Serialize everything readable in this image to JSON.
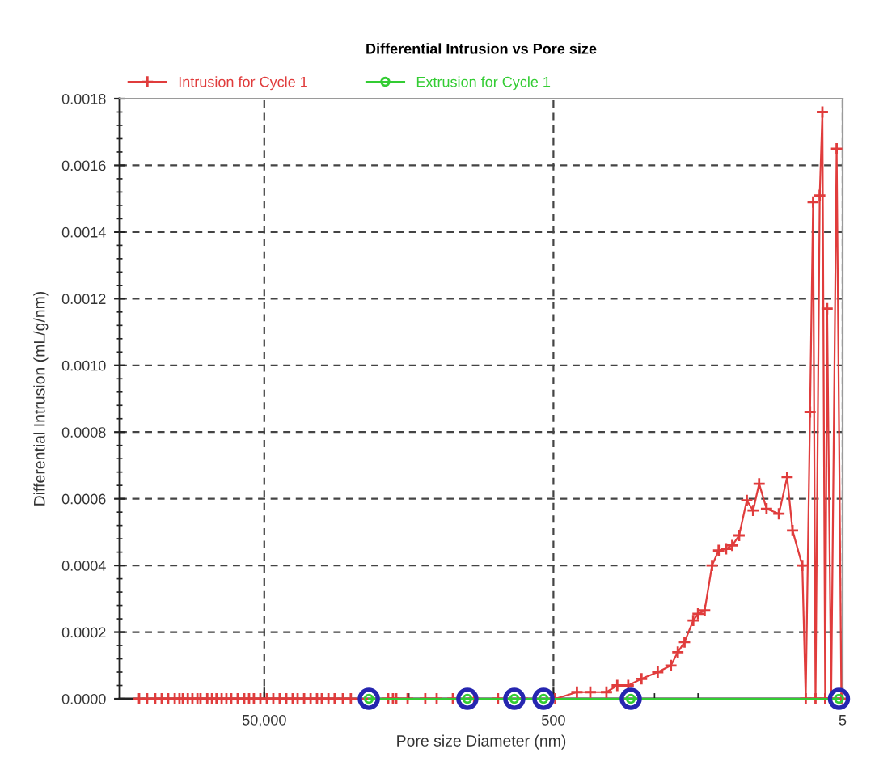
{
  "chart_data": {
    "type": "line",
    "title": "Differential Intrusion vs Pore size",
    "xlabel": "Pore size Diameter (nm)",
    "ylabel": "Differential Intrusion (mL/g/nm)",
    "log": "x",
    "xlim": [
      500000,
      5
    ],
    "xticks": [
      {
        "value": 50000,
        "label": "50,000"
      },
      {
        "value": 5000,
        "label": null
      },
      500,
      {
        "value": 100,
        "label": null
      },
      {
        "value": 50,
        "label": null
      },
      5
    ],
    "ylim": [
      0,
      0.0018
    ],
    "yticks": [
      {
        "value": 0,
        "label": "0.0000"
      },
      0.0002,
      0.0004,
      0.0006,
      0.0008,
      {
        "value": 0.001,
        "label": "0.0010"
      },
      0.0012,
      0.0014,
      0.0016,
      0.0018,
      {
        "value": 4e-05,
        "label": null
      },
      {
        "value": 8e-05,
        "label": null
      },
      {
        "value": 0.00012,
        "label": null
      },
      {
        "value": 0.00016,
        "label": null
      },
      {
        "value": 0.00024,
        "label": null
      },
      {
        "value": 0.00028,
        "label": null
      },
      {
        "value": 0.00032,
        "label": null
      },
      {
        "value": 0.00036,
        "label": null
      },
      {
        "value": 0.00044,
        "label": null
      },
      {
        "value": 0.00048,
        "label": null
      },
      {
        "value": 0.00052,
        "label": null
      },
      {
        "value": 0.00056,
        "label": null
      },
      {
        "value": 0.00064,
        "label": null
      },
      {
        "value": 0.00068,
        "label": null
      },
      {
        "value": 0.00072,
        "label": null
      },
      {
        "value": 0.00076,
        "label": null
      },
      {
        "value": 0.00084,
        "label": null
      },
      {
        "value": 0.00088,
        "label": null
      },
      {
        "value": 0.00092,
        "label": null
      },
      {
        "value": 0.00096,
        "label": null
      },
      {
        "value": 0.00104,
        "label": null
      },
      {
        "value": 0.00108,
        "label": null
      },
      {
        "value": 0.00112,
        "label": null
      },
      {
        "value": 0.00116,
        "label": null
      },
      {
        "value": 0.00124,
        "label": null
      },
      {
        "value": 0.00128,
        "label": null
      },
      {
        "value": 0.00132,
        "label": null
      },
      {
        "value": 0.00136,
        "label": null
      },
      {
        "value": 0.00144,
        "label": null
      },
      {
        "value": 0.00148,
        "label": null
      },
      {
        "value": 0.00152,
        "label": null
      },
      {
        "value": 0.00156,
        "label": null
      },
      {
        "value": 0.00164,
        "label": null
      },
      {
        "value": 0.00168,
        "label": null
      },
      {
        "value": 0.00172,
        "label": null
      },
      {
        "value": 0.00176,
        "label": null
      }
    ],
    "grid": true,
    "legend": "top left",
    "line_style": "solid",
    "series": [
      {
        "name": "Intrusion for Cycle 1",
        "color": "#e03c3c",
        "marker": "cross",
        "x": [
          367000,
          323000,
          284000,
          256000,
          231000,
          208000,
          193000,
          183000,
          169000,
          157000,
          145000,
          138000,
          124000,
          115000,
          107000,
          98600,
          91400,
          84600,
          76300,
          68800,
          63700,
          59000,
          53200,
          48000,
          43300,
          39100,
          35200,
          31800,
          29400,
          26500,
          23900,
          21600,
          20000,
          18000,
          16300,
          14300,
          12600,
          6950,
          6440,
          6110,
          5100,
          3850,
          3210,
          2480,
          1770,
          1210,
          820,
          486,
          344,
          278,
          215,
          181,
          152,
          123,
          95,
          77,
          69,
          62,
          54,
          50,
          45,
          40,
          36,
          32,
          29,
          26,
          23,
          20.8,
          18.9,
          16.8,
          13.8,
          12.1,
          11.1,
          9.5,
          9.0,
          8.4,
          8.0,
          7.7,
          7.2,
          6.9,
          6.6,
          6.4,
          6.0,
          5.5,
          5.1
        ],
        "values": [
          0,
          0,
          0,
          0,
          0,
          0,
          0,
          0,
          0,
          0,
          0,
          0,
          0,
          0,
          0,
          0,
          0,
          0,
          0,
          0,
          0,
          0,
          0,
          0,
          0,
          0,
          0,
          0,
          0,
          0,
          0,
          0,
          0,
          0,
          0,
          0,
          0,
          0,
          0,
          0,
          0,
          0,
          0,
          0,
          0,
          0,
          0,
          0,
          2e-05,
          2e-05,
          2e-05,
          4e-05,
          4e-05,
          6e-05,
          8e-05,
          0.0001,
          0.00014,
          0.00017,
          0.000235,
          0.000255,
          0.000265,
          0.0004,
          0.000445,
          0.00045,
          0.00046,
          0.00049,
          0.000595,
          0.000565,
          0.000645,
          0.00057,
          0.000555,
          0.000665,
          0.000505,
          0.0004,
          0,
          0.00086,
          0.00149,
          0,
          0.00151,
          0.00176,
          0,
          0.00117,
          0,
          0.00165,
          0
        ]
      },
      {
        "name": "Extrusion for Cycle 1",
        "color": "#33cc33",
        "marker": "circle",
        "x": [
          9460,
          1970,
          933,
          586,
          146,
          5.3
        ],
        "values": [
          0,
          0,
          0,
          0,
          0,
          0
        ]
      },
      {
        "color": "#2626b0",
        "type": "scatter",
        "marker": "circle",
        "x": [
          9460,
          1970,
          933,
          586,
          146,
          5.3
        ],
        "values": [
          0,
          0,
          0,
          0,
          0,
          0
        ]
      }
    ]
  }
}
